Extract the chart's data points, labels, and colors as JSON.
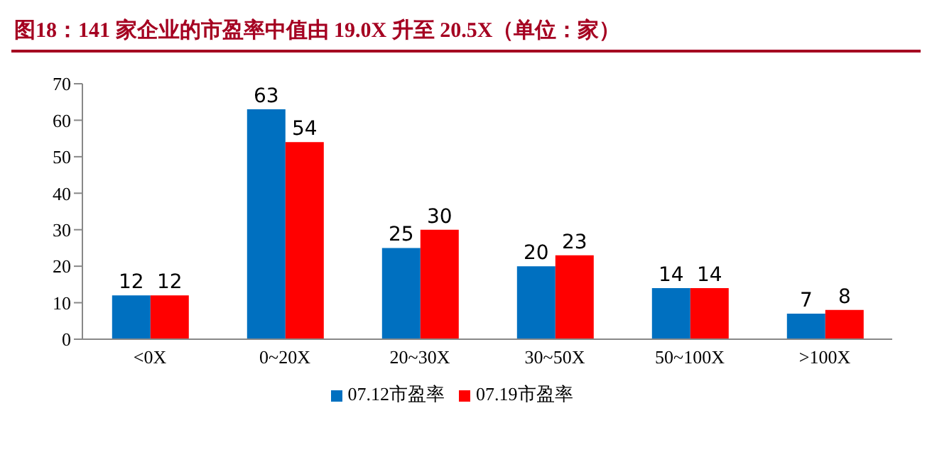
{
  "chart_data": {
    "type": "bar",
    "title": "图18：141 家企业的市盈率中值由 19.0X 升至 20.5X（单位：家）",
    "categories": [
      "<0X",
      "0~20X",
      "20~30X",
      "30~50X",
      "50~100X",
      ">100X"
    ],
    "series": [
      {
        "name": "07.12市盈率",
        "color": "#0070c0",
        "values": [
          12,
          63,
          25,
          20,
          14,
          7
        ]
      },
      {
        "name": "07.19市盈率",
        "color": "#ff0000",
        "values": [
          12,
          54,
          30,
          23,
          14,
          8
        ]
      }
    ],
    "ylim": [
      0,
      70
    ],
    "yticks": [
      0,
      10,
      20,
      30,
      40,
      50,
      60,
      70
    ],
    "grid": false,
    "legend": "bottom",
    "data_labels": true
  }
}
